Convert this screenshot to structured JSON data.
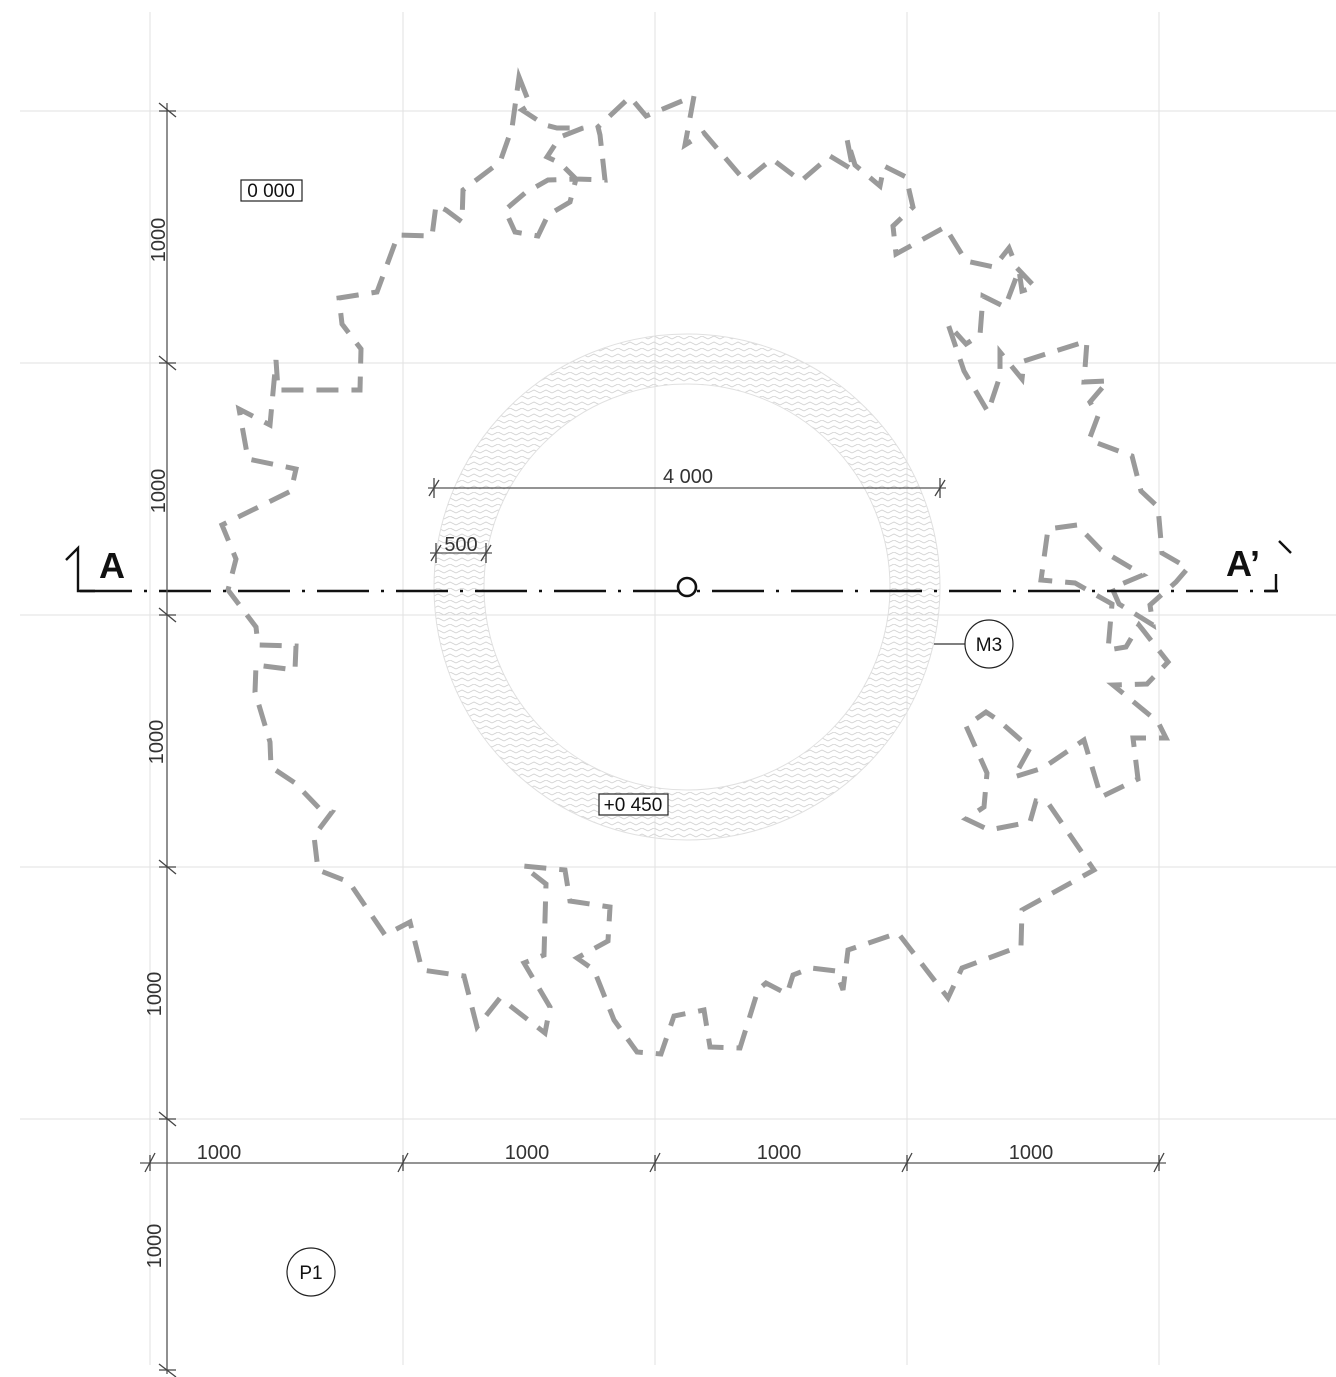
{
  "title": "",
  "grid": {
    "lines": "light gray",
    "color": "#e2e2e2"
  },
  "dimensions": {
    "horizontal": [
      "1000",
      "1000",
      "1000",
      "1000"
    ],
    "vertical": [
      "1000",
      "1000",
      "1000",
      "1000",
      "1000"
    ],
    "ring_outer_diameter": "4 000",
    "ring_width": "500"
  },
  "section": {
    "start_label": "A",
    "end_label": "A’"
  },
  "levels": {
    "ground": "0 000",
    "platform": "+0 450"
  },
  "tags": {
    "material": "M3",
    "plant": "P1"
  },
  "colors": {
    "canopy_outline": "#9a9a9a",
    "ring_hatch": "#d7d7d7",
    "dimension": "#555555",
    "section_line": "#111111"
  },
  "icons": {
    "center_marker": "circle",
    "section_arrow": "section-cut-marker"
  }
}
